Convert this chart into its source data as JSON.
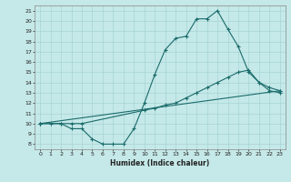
{
  "xlabel": "Humidex (Indice chaleur)",
  "bg_color": "#c5e8e8",
  "line_color": "#1a6b6b",
  "grid_color": "#a8d4d4",
  "xlim": [
    -0.5,
    23.5
  ],
  "ylim": [
    7.5,
    21.5
  ],
  "yticks": [
    8,
    9,
    10,
    11,
    12,
    13,
    14,
    15,
    16,
    17,
    18,
    19,
    20,
    21
  ],
  "xticks": [
    0,
    1,
    2,
    3,
    4,
    5,
    6,
    7,
    8,
    9,
    10,
    11,
    12,
    13,
    14,
    15,
    16,
    17,
    18,
    19,
    20,
    21,
    22,
    23
  ],
  "line1_x": [
    0,
    1,
    2,
    3,
    4,
    5,
    6,
    7,
    8,
    9,
    10,
    11,
    12,
    13,
    14,
    15,
    16,
    17,
    18,
    19,
    20,
    21,
    22,
    23
  ],
  "line1_y": [
    10,
    10,
    10,
    9.5,
    9.5,
    8.5,
    8.0,
    8.0,
    8.0,
    9.5,
    12.0,
    14.8,
    17.2,
    18.3,
    18.5,
    20.2,
    20.2,
    21.0,
    19.2,
    17.5,
    15.0,
    14.0,
    13.2,
    13.0
  ],
  "line2_x": [
    0,
    2,
    3,
    4,
    10,
    11,
    12,
    13,
    14,
    15,
    16,
    17,
    18,
    19,
    20,
    21,
    22,
    23
  ],
  "line2_y": [
    10,
    10,
    10,
    10,
    11.3,
    11.5,
    11.8,
    12.0,
    12.5,
    13.0,
    13.5,
    14.0,
    14.5,
    15.0,
    15.2,
    14.0,
    13.5,
    13.2
  ],
  "line3_x": [
    0,
    23
  ],
  "line3_y": [
    10,
    13.2
  ]
}
